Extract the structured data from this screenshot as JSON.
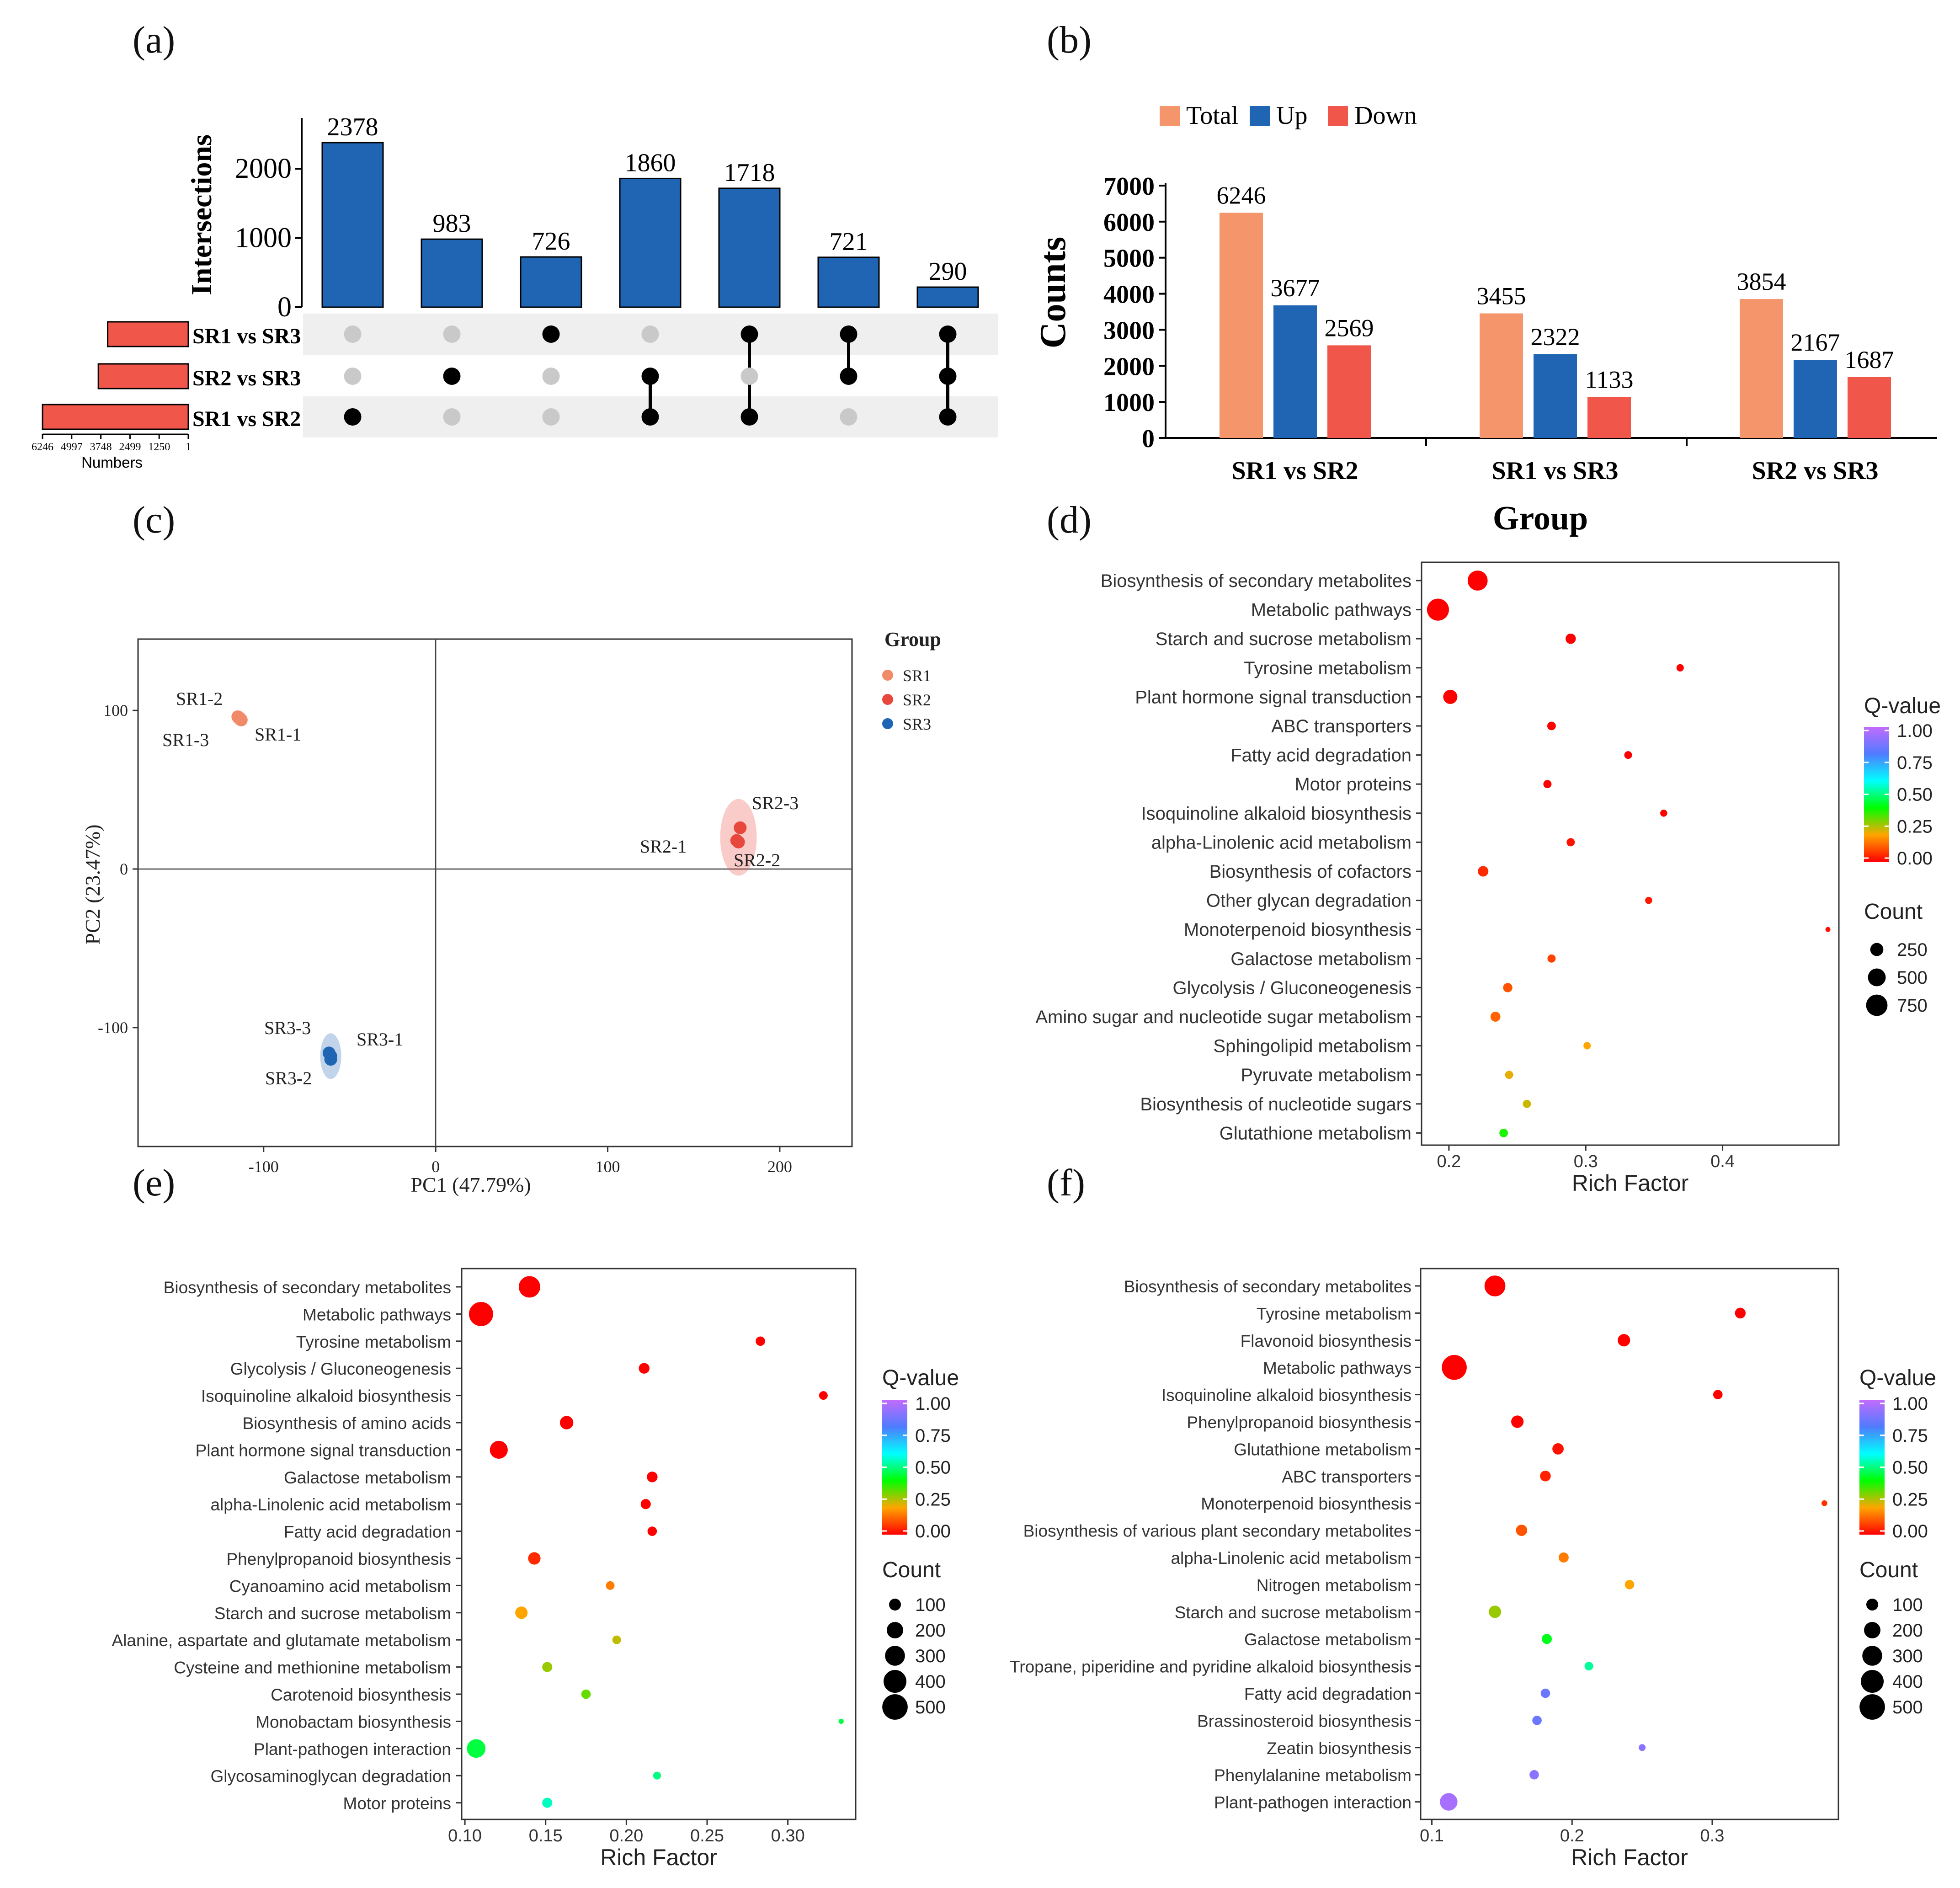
{
  "panel_labels": [
    "(a)",
    "(b)",
    "(c)",
    "(d)",
    "(e)",
    "(f)"
  ],
  "colors": {
    "upset_bar": "#1f65b3",
    "set_bar": "#f0564a",
    "dot_on": "#000000",
    "dot_off": "#c9c9c9",
    "band": "#efefef",
    "total": "#f4956c",
    "up": "#1f65b3",
    "down": "#f0564a",
    "sr1": "#f08a68",
    "sr2": "#e8483c",
    "sr3": "#1f65b3",
    "grad": [
      "#ff0000",
      "#ffa500",
      "#00ff00",
      "#00ffff",
      "#4f7bff",
      "#c36bff"
    ]
  },
  "chart_data": [
    {
      "id": "a",
      "type": "bar",
      "ylabel": "Intersections",
      "yticks": [
        0,
        1000,
        2000
      ],
      "ylim": [
        0,
        2600
      ],
      "values": [
        2378,
        983,
        726,
        1860,
        1718,
        721,
        290
      ],
      "sets": [
        "SR1 vs SR3",
        "SR2 vs SR3",
        "SR1 vs SR2"
      ],
      "set_sizes": [
        3455,
        3854,
        6246
      ],
      "set_axis_ticks": [
        "6246",
        "4997",
        "3748",
        "2499",
        "1250",
        "1"
      ],
      "set_axis_label": "Numbers",
      "membership": [
        [
          2
        ],
        [
          1
        ],
        [
          0
        ],
        [
          1,
          2
        ],
        [
          0,
          2
        ],
        [
          0,
          1
        ],
        [
          0,
          1,
          2
        ]
      ]
    },
    {
      "id": "b",
      "type": "bar",
      "ylabel": "Counts",
      "xlabel": "Group",
      "legend": [
        "Total",
        "Up",
        "Down"
      ],
      "categories": [
        "SR1 vs SR2",
        "SR1 vs SR3",
        "SR2 vs SR3"
      ],
      "yticks": [
        0,
        1000,
        2000,
        3000,
        4000,
        5000,
        6000,
        7000
      ],
      "ylim": [
        0,
        7000
      ],
      "series": [
        {
          "name": "Total",
          "values": [
            6246,
            3455,
            3854
          ]
        },
        {
          "name": "Up",
          "values": [
            3677,
            2322,
            2167
          ]
        },
        {
          "name": "Down",
          "values": [
            2569,
            1133,
            1687
          ]
        }
      ]
    },
    {
      "id": "c",
      "type": "scatter",
      "xlabel": "PC1 (47.79%)",
      "ylabel": "PC2 (23.47%)",
      "xlim": [
        -173,
        242
      ],
      "ylim": [
        -175,
        145
      ],
      "xticks": [
        -100,
        0,
        100,
        200
      ],
      "yticks": [
        -100,
        0,
        100
      ],
      "legend_title": "Group",
      "groups": [
        "SR1",
        "SR2",
        "SR3"
      ],
      "points": [
        {
          "label": "SR1-1",
          "group": "SR1",
          "x": -114,
          "y": 95
        },
        {
          "label": "SR1-2",
          "group": "SR1",
          "x": -115,
          "y": 96
        },
        {
          "label": "SR1-3",
          "group": "SR1",
          "x": -113,
          "y": 94
        },
        {
          "label": "SR2-1",
          "group": "SR2",
          "x": 175,
          "y": 18
        },
        {
          "label": "SR2-2",
          "group": "SR2",
          "x": 176,
          "y": 17
        },
        {
          "label": "SR2-3",
          "group": "SR2",
          "x": 177,
          "y": 26
        },
        {
          "label": "SR3-1",
          "group": "SR3",
          "x": -61,
          "y": -118
        },
        {
          "label": "SR3-2",
          "group": "SR3",
          "x": -62,
          "y": -116
        },
        {
          "label": "SR3-3",
          "group": "SR3",
          "x": -61,
          "y": -120
        }
      ]
    },
    {
      "id": "d",
      "type": "scatter",
      "xlabel": "Rich Factor",
      "xlim": [
        0.18,
        0.485
      ],
      "xticks": [
        0.2,
        0.3,
        0.4
      ],
      "legend_color_title": "Q-value",
      "color_ticks": [
        "1.00",
        "0.75",
        "0.50",
        "0.25",
        "0.00"
      ],
      "legend_size_title": "Count",
      "size_legend": [
        250,
        500,
        750
      ],
      "terms": [
        "Biosynthesis of secondary metabolites",
        "Metabolic pathways",
        "Starch and sucrose metabolism",
        "Tyrosine metabolism",
        "Plant hormone signal transduction",
        "ABC transporters",
        "Fatty acid degradation",
        "Motor proteins",
        "Isoquinoline alkaloid biosynthesis",
        "alpha-Linolenic acid metabolism",
        "Biosynthesis of cofactors",
        "Other glycan degradation",
        "Monoterpenoid biosynthesis",
        "Galactose metabolism",
        "Glycolysis / Gluconeogenesis",
        "Amino sugar and nucleotide sugar metabolism",
        "Sphingolipid metabolism",
        "Pyruvate metabolism",
        "Biosynthesis of nucleotide sugars",
        "Glutathione metabolism"
      ],
      "x": [
        0.221,
        0.192,
        0.289,
        0.369,
        0.201,
        0.275,
        0.331,
        0.272,
        0.357,
        0.289,
        0.225,
        0.346,
        0.477,
        0.275,
        0.243,
        0.234,
        0.301,
        0.244,
        0.257,
        0.24
      ],
      "q": [
        0.0,
        0.0,
        0.0,
        0.0,
        0.0,
        0.0,
        0.0,
        0.0,
        0.0,
        0.02,
        0.05,
        0.03,
        0.02,
        0.08,
        0.1,
        0.12,
        0.2,
        0.22,
        0.24,
        0.38
      ],
      "count": [
        650,
        800,
        140,
        60,
        300,
        90,
        70,
        80,
        55,
        80,
        150,
        55,
        20,
        80,
        110,
        130,
        60,
        80,
        80,
        90
      ]
    },
    {
      "id": "e",
      "type": "scatter",
      "xlabel": "Rich Factor",
      "xlim": [
        0.098,
        0.342
      ],
      "xticks": [
        0.1,
        0.15,
        0.2,
        0.25,
        0.3
      ],
      "xtick_labels": [
        "0.10",
        "0.15",
        "0.20",
        "0.25",
        "0.30"
      ],
      "legend_color_title": "Q-value",
      "color_ticks": [
        "1.00",
        "0.75",
        "0.50",
        "0.25",
        "0.00"
      ],
      "legend_size_title": "Count",
      "size_legend": [
        100,
        200,
        300,
        400,
        500
      ],
      "terms": [
        "Biosynthesis of secondary metabolites",
        "Metabolic pathways",
        "Tyrosine metabolism",
        "Glycolysis / Gluconeogenesis",
        "Isoquinoline alkaloid biosynthesis",
        "Biosynthesis of amino acids",
        "Plant hormone signal transduction",
        "Galactose metabolism",
        "alpha-Linolenic acid metabolism",
        "Fatty acid degradation",
        "Phenylpropanoid biosynthesis",
        "Cyanoamino acid metabolism",
        "Starch and sucrose metabolism",
        "Alanine, aspartate and glutamate metabolism",
        "Cysteine and methionine metabolism",
        "Carotenoid biosynthesis",
        "Monobactam biosynthesis",
        "Plant-pathogen interaction",
        "Glycosaminoglycan degradation",
        "Motor proteins"
      ],
      "x": [
        0.14,
        0.11,
        0.283,
        0.211,
        0.322,
        0.163,
        0.121,
        0.216,
        0.212,
        0.216,
        0.143,
        0.19,
        0.135,
        0.194,
        0.151,
        0.175,
        0.333,
        0.107,
        0.219,
        0.151
      ],
      "q": [
        0.0,
        0.0,
        0.0,
        0.0,
        0.0,
        0.0,
        0.0,
        0.0,
        0.0,
        0.0,
        0.05,
        0.15,
        0.2,
        0.25,
        0.28,
        0.32,
        0.45,
        0.45,
        0.5,
        0.55
      ],
      "count": [
        350,
        450,
        60,
        80,
        50,
        130,
        240,
        80,
        70,
        60,
        110,
        50,
        110,
        50,
        70,
        60,
        15,
        260,
        40,
        70
      ]
    },
    {
      "id": "f",
      "type": "scatter",
      "xlabel": "Rich Factor",
      "xlim": [
        0.092,
        0.39
      ],
      "xticks": [
        0.1,
        0.2,
        0.3
      ],
      "legend_color_title": "Q-value",
      "color_ticks": [
        "1.00",
        "0.75",
        "0.50",
        "0.25",
        "0.00"
      ],
      "legend_size_title": "Count",
      "size_legend": [
        100,
        200,
        300,
        400,
        500
      ],
      "terms": [
        "Biosynthesis of secondary metabolites",
        "Tyrosine metabolism",
        "Flavonoid biosynthesis",
        "Metabolic pathways",
        "Isoquinoline alkaloid biosynthesis",
        "Phenylpropanoid biosynthesis",
        "Glutathione metabolism",
        "ABC transporters",
        "Monoterpenoid biosynthesis",
        "Biosynthesis of various plant secondary metabolites",
        "alpha-Linolenic acid metabolism",
        "Nitrogen metabolism",
        "Starch and sucrose metabolism",
        "Galactose metabolism",
        "Tropane, piperidine and pyridine alkaloid biosynthesis",
        "Fatty acid degradation",
        "Brassinosteroid biosynthesis",
        "Zeatin biosynthesis",
        "Phenylalanine metabolism",
        "Plant-pathogen interaction"
      ],
      "x": [
        0.145,
        0.32,
        0.237,
        0.116,
        0.304,
        0.161,
        0.19,
        0.181,
        0.38,
        0.164,
        0.194,
        0.241,
        0.145,
        0.182,
        0.212,
        0.181,
        0.175,
        0.25,
        0.173,
        0.112
      ],
      "q": [
        0.0,
        0.0,
        0.0,
        0.0,
        0.0,
        0.0,
        0.02,
        0.04,
        0.06,
        0.1,
        0.15,
        0.2,
        0.28,
        0.42,
        0.52,
        0.85,
        0.85,
        0.9,
        0.9,
        0.95
      ],
      "count": [
        330,
        80,
        110,
        480,
        60,
        110,
        90,
        80,
        20,
        90,
        70,
        60,
        110,
        70,
        50,
        60,
        60,
        30,
        60,
        230
      ]
    }
  ]
}
